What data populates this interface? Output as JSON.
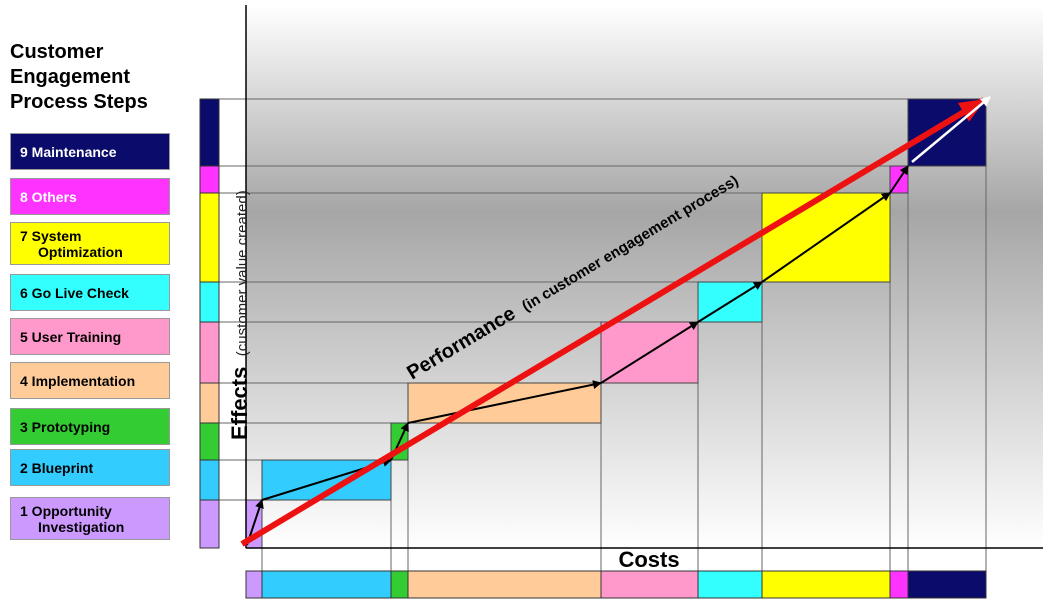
{
  "legend": {
    "title_lines": [
      "Customer",
      "Engagement",
      "Process Steps"
    ],
    "steps": [
      {
        "number": "9",
        "label": "Maintenance",
        "color": "#0b0b6b",
        "text_color": "#ffffff"
      },
      {
        "number": "8",
        "label": "Others",
        "color": "#ff33ff",
        "text_color": "#ffffff"
      },
      {
        "number": "7",
        "label": "System",
        "label2": "Optimization",
        "color": "#ffff00",
        "text_color": "#000000"
      },
      {
        "number": "6",
        "label": "Go Live Check",
        "color": "#33ffff",
        "text_color": "#000000"
      },
      {
        "number": "5",
        "label": "User Training",
        "color": "#ff99cc",
        "text_color": "#000000"
      },
      {
        "number": "4",
        "label": "Implementation",
        "color": "#ffcc99",
        "text_color": "#000000"
      },
      {
        "number": "3",
        "label": "Prototyping",
        "color": "#33cc33",
        "text_color": "#000000"
      },
      {
        "number": "2",
        "label": "Blueprint",
        "color": "#33ccff",
        "text_color": "#000000"
      },
      {
        "number": "1",
        "label": "Opportunity",
        "label2": "Investigation",
        "color": "#cc99ff",
        "text_color": "#000000"
      }
    ]
  },
  "axes": {
    "y_label_bold": "Effects",
    "y_label_light": "(customer value created)",
    "x_label": "Costs"
  },
  "performance_label_bold": "Performance",
  "performance_label_light": "(in customer engagement process)"
}
